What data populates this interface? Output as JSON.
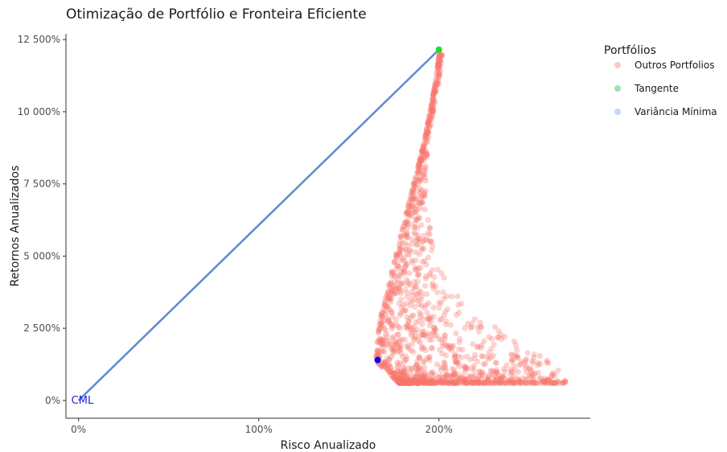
{
  "chart_data": {
    "type": "scatter",
    "title": "Otimização de Portfólio e Fronteira Eficiente",
    "xlabel": "Risco Anualizado",
    "ylabel": "Retornos Anualizados",
    "xlim": [
      -0.07,
      2.84
    ],
    "ylim": [
      -0.615,
      12.7
    ],
    "x_ticks": [
      {
        "value": 0,
        "label": "0%"
      },
      {
        "value": 1,
        "label": "100%"
      },
      {
        "value": 2,
        "label": "200%"
      }
    ],
    "y_ticks": [
      {
        "value": 0,
        "label": "0%"
      },
      {
        "value": 2.5,
        "label": "2 500%"
      },
      {
        "value": 5,
        "label": "5 000%"
      },
      {
        "value": 7.5,
        "label": "7 500%"
      },
      {
        "value": 10,
        "label": "10 000%"
      },
      {
        "value": 12.5,
        "label": "12 500%"
      }
    ],
    "grid": false,
    "legend": {
      "title": "Portfólios",
      "position": "right",
      "items": [
        {
          "label": "Outros Portfolios",
          "color": "#F8766D"
        },
        {
          "label": "Tangente",
          "color": "#00BA38"
        },
        {
          "label": "Variância Mínima",
          "color": "#619CFF"
        }
      ]
    },
    "cml": {
      "label": "CML",
      "color": "#5B8BD0",
      "label_color": "#2222DD",
      "x": [
        0,
        2.0
      ],
      "y": [
        0,
        12.15
      ]
    },
    "tangent_point": {
      "x": 2.0,
      "y": 12.15,
      "color": "#22DD22"
    },
    "min_variance_point": {
      "x": 1.66,
      "y": 1.4,
      "color": "#0000EE"
    },
    "other_portfolios": {
      "color": "#F8766D",
      "count": 1500,
      "frontier": [
        [
          1.65,
          1.4
        ],
        [
          1.655,
          2.0
        ],
        [
          1.68,
          3.0
        ],
        [
          1.72,
          4.0
        ],
        [
          1.76,
          5.0
        ],
        [
          1.8,
          6.0
        ],
        [
          1.84,
          7.0
        ],
        [
          1.88,
          8.0
        ],
        [
          1.92,
          9.0
        ],
        [
          1.95,
          10.0
        ],
        [
          1.98,
          11.0
        ],
        [
          2.0,
          12.0
        ]
      ],
      "lower_edge": [
        [
          1.655,
          1.3
        ],
        [
          1.7,
          0.9
        ],
        [
          1.8,
          0.65
        ],
        [
          2.0,
          0.6
        ],
        [
          2.3,
          0.6
        ],
        [
          2.55,
          0.6
        ],
        [
          2.72,
          0.6
        ]
      ],
      "outer_edge": [
        [
          2.0,
          12.0
        ],
        [
          1.98,
          11.0
        ],
        [
          1.96,
          10.0
        ],
        [
          1.94,
          9.0
        ],
        [
          1.93,
          8.0
        ],
        [
          1.93,
          7.0
        ],
        [
          1.95,
          6.0
        ],
        [
          1.98,
          5.0
        ],
        [
          2.05,
          4.0
        ],
        [
          2.2,
          3.0
        ],
        [
          2.45,
          2.0
        ],
        [
          2.65,
          1.2
        ],
        [
          2.72,
          0.6
        ]
      ]
    }
  }
}
